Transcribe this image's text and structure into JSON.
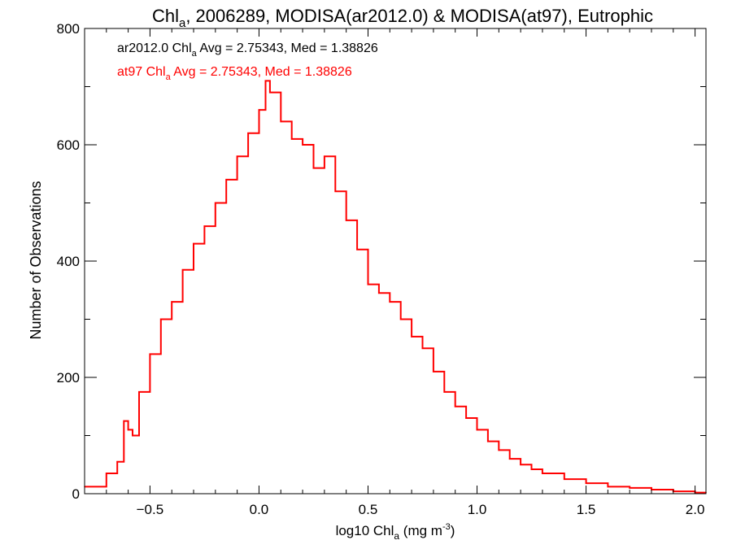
{
  "chart_data": {
    "type": "line",
    "title_main": "Chl",
    "title_sub": "a",
    "title_rest": ", 2006289, MODISA(ar2012.0) & MODISA(at97), Eutrophic",
    "xlabel_pre": "log10 Chl",
    "xlabel_sub": "a",
    "xlabel_mid": " (mg m",
    "xlabel_sup": "-3",
    "xlabel_post": ")",
    "ylabel": "Number of Observations",
    "xlim": [
      -0.8,
      2.05
    ],
    "ylim": [
      0,
      800
    ],
    "x_ticks": [
      -0.5,
      0.0,
      0.5,
      1.0,
      1.5,
      2.0
    ],
    "x_tick_labels": [
      "−0.5",
      "0.0",
      "0.5",
      "1.0",
      "1.5",
      "2.0"
    ],
    "y_ticks": [
      0,
      200,
      400,
      600,
      800
    ],
    "y_tick_labels": [
      "0",
      "200",
      "400",
      "600",
      "800"
    ],
    "grid": false,
    "annotations": [
      {
        "pre": "ar2012.0 Chl",
        "sub": "a",
        "post": " Avg = 2.75343, Med = 1.38826",
        "color": "#000000"
      },
      {
        "pre": "at97 Chl",
        "sub": "a",
        "post": " Avg = 2.75343, Med = 1.38826",
        "color": "#ff0000"
      }
    ],
    "series": [
      {
        "color": "#ff0000",
        "x": [
          -0.8,
          -0.7,
          -0.65,
          -0.62,
          -0.6,
          -0.58,
          -0.55,
          -0.5,
          -0.45,
          -0.4,
          -0.35,
          -0.3,
          -0.25,
          -0.2,
          -0.15,
          -0.1,
          -0.05,
          0.0,
          0.03,
          0.05,
          0.1,
          0.15,
          0.2,
          0.25,
          0.3,
          0.35,
          0.4,
          0.45,
          0.5,
          0.55,
          0.6,
          0.65,
          0.7,
          0.75,
          0.8,
          0.85,
          0.9,
          0.95,
          1.0,
          1.05,
          1.1,
          1.15,
          1.2,
          1.25,
          1.3,
          1.4,
          1.5,
          1.6,
          1.7,
          1.8,
          1.9,
          2.0,
          2.05
        ],
        "y": [
          12,
          35,
          55,
          125,
          110,
          100,
          175,
          240,
          300,
          330,
          385,
          430,
          460,
          500,
          540,
          580,
          620,
          660,
          710,
          690,
          640,
          610,
          600,
          560,
          580,
          520,
          470,
          420,
          360,
          345,
          330,
          300,
          270,
          250,
          210,
          175,
          150,
          130,
          110,
          90,
          75,
          60,
          50,
          42,
          35,
          25,
          18,
          12,
          10,
          7,
          4,
          2,
          2
        ]
      }
    ]
  }
}
